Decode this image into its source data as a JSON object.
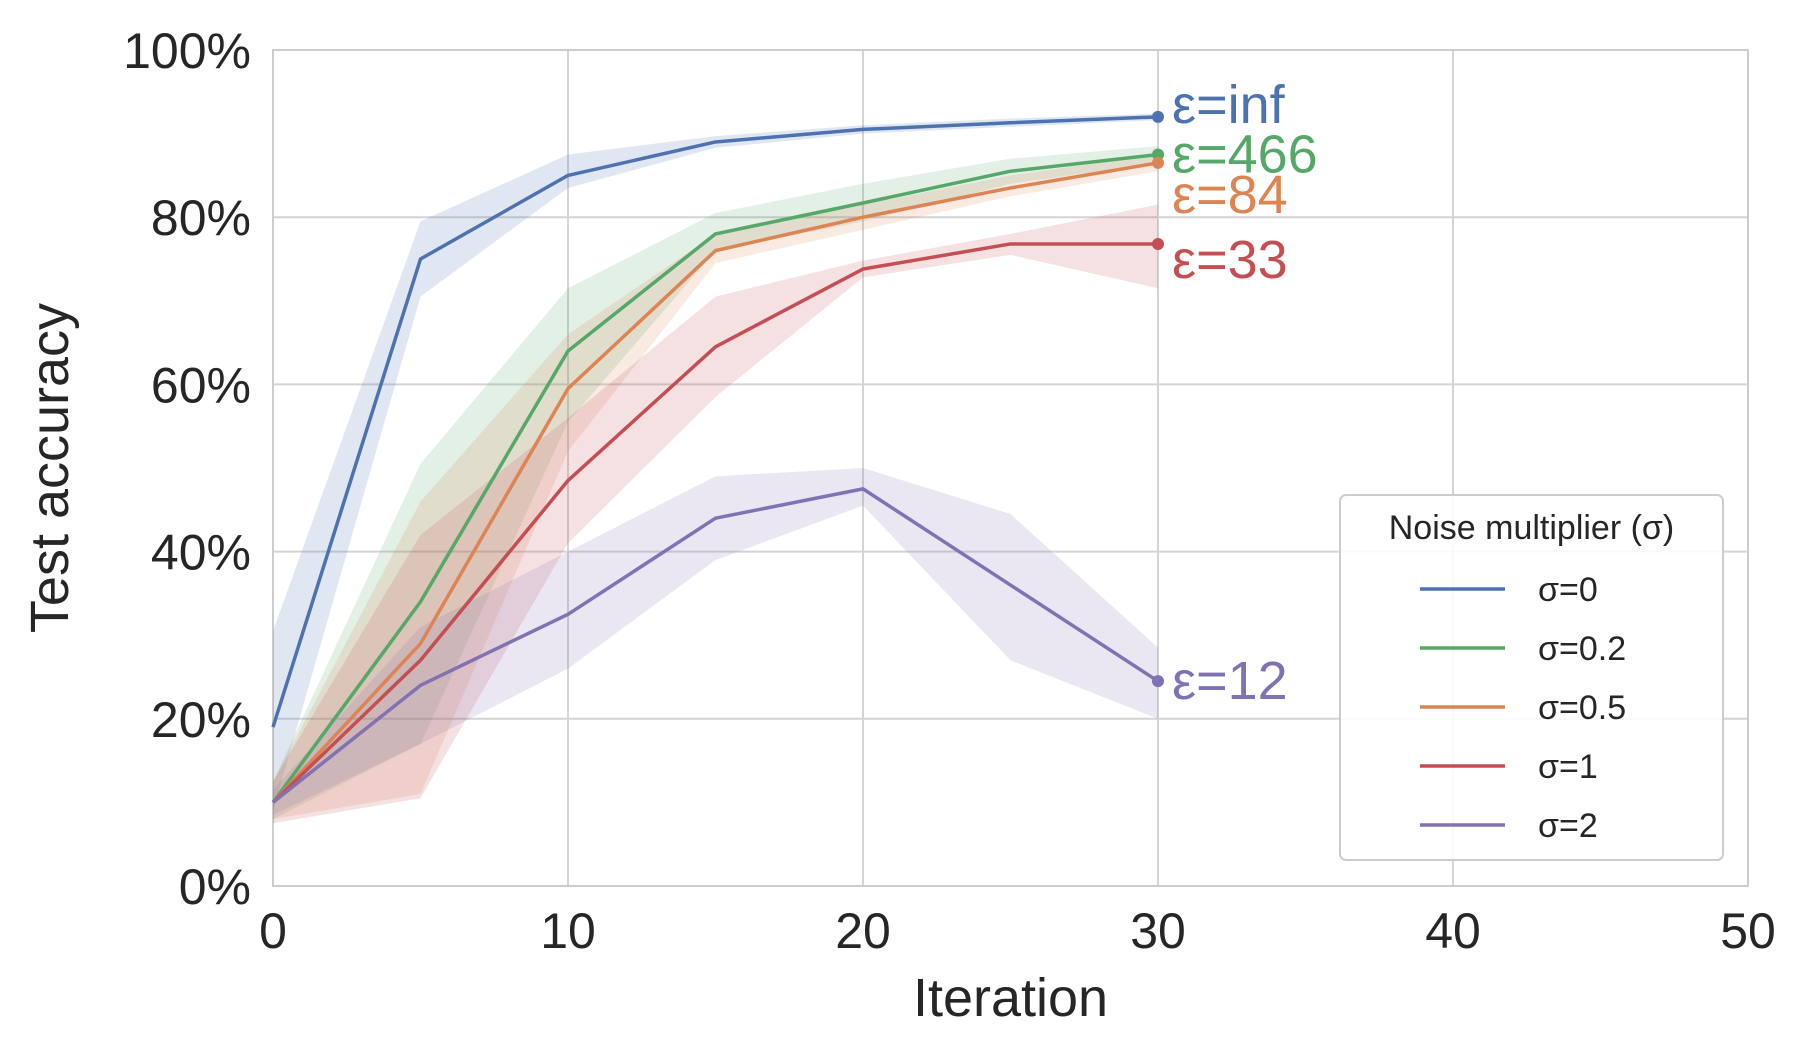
{
  "chart_data": {
    "type": "line",
    "xlabel": "Iteration",
    "ylabel": "Test accuracy",
    "xlim": [
      0,
      50
    ],
    "ylim": [
      0,
      100
    ],
    "x_ticks": [
      "0",
      "10",
      "20",
      "30",
      "40",
      "50"
    ],
    "y_ticks": [
      "0%",
      "20%",
      "40%",
      "60%",
      "80%",
      "100%"
    ],
    "grid": true,
    "legend": {
      "title": "Noise multiplier (σ)",
      "placement": "lower-right"
    },
    "series": [
      {
        "name": "σ=0",
        "end_label": "ε=inf",
        "color": "#4c72b0",
        "x": [
          0,
          5,
          10,
          15,
          20,
          25,
          30
        ],
        "y": [
          19,
          75,
          85,
          89,
          90.5,
          91.3,
          92
        ],
        "y_low": [
          9,
          70.5,
          83.5,
          88.3,
          90,
          90.8,
          91.6
        ],
        "y_high": [
          30.5,
          79.5,
          87.5,
          89.7,
          91,
          91.8,
          92.4
        ]
      },
      {
        "name": "σ=0.2",
        "end_label": "ε=466",
        "color": "#55a868",
        "x": [
          0,
          5,
          10,
          15,
          20,
          25,
          30
        ],
        "y": [
          10,
          34,
          64,
          78,
          81.7,
          85.5,
          87.5
        ],
        "y_low": [
          8,
          17,
          55.5,
          76,
          79.5,
          84,
          86.5
        ],
        "y_high": [
          12.5,
          50.5,
          71.5,
          80.5,
          84,
          87,
          88.5
        ]
      },
      {
        "name": "σ=0.5",
        "end_label": "ε=84",
        "color": "#dd8452",
        "x": [
          0,
          5,
          10,
          15,
          20,
          25,
          30
        ],
        "y": [
          10,
          29,
          59.5,
          76,
          80,
          83.5,
          86.5
        ],
        "y_low": [
          8,
          11,
          52,
          74.5,
          78.5,
          82.5,
          85.5
        ],
        "y_high": [
          12.5,
          46,
          66,
          78,
          81.5,
          85,
          87.5
        ]
      },
      {
        "name": "σ=1",
        "end_label": "ε=33",
        "color": "#c44e52",
        "x": [
          0,
          5,
          10,
          15,
          20,
          25,
          30
        ],
        "y": [
          10,
          27,
          48.5,
          64.5,
          73.8,
          76.8,
          76.8
        ],
        "y_low": [
          7.5,
          10.5,
          41,
          58.5,
          72.8,
          75.5,
          71.5
        ],
        "y_high": [
          12.5,
          42,
          56,
          70.5,
          74.8,
          78,
          81.5
        ]
      },
      {
        "name": "σ=2",
        "end_label": "ε=12",
        "color": "#8172b3",
        "x": [
          0,
          5,
          10,
          15,
          20,
          25,
          30
        ],
        "y": [
          10,
          24,
          32.5,
          44,
          47.5,
          36,
          24.5
        ],
        "y_low": [
          8.5,
          17,
          26,
          39,
          45.5,
          27,
          20
        ],
        "y_high": [
          11.5,
          31,
          40,
          49,
          50,
          44.5,
          28.5
        ]
      }
    ]
  }
}
